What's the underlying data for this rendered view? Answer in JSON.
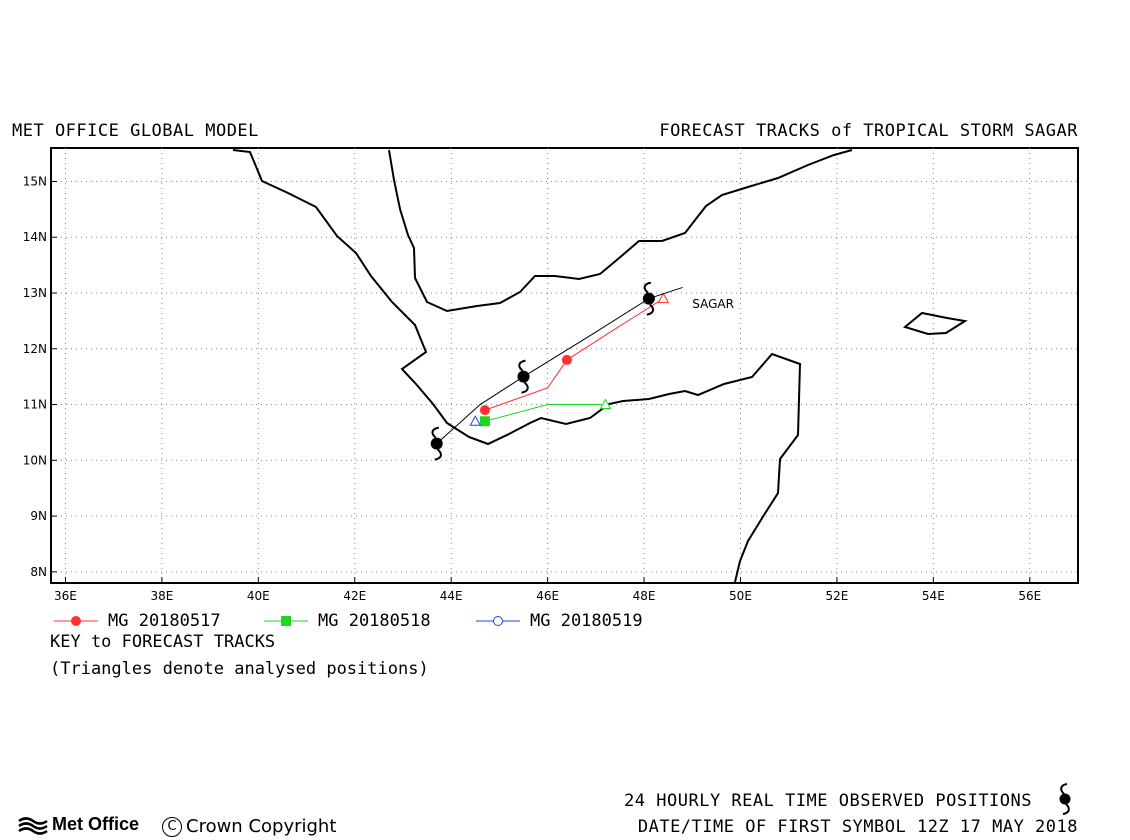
{
  "header": {
    "left_title": "MET OFFICE GLOBAL MODEL",
    "right_title": "FORECAST TRACKS of TROPICAL STORM SAGAR"
  },
  "map": {
    "lon_range": [
      35.7,
      57.0
    ],
    "lat_range": [
      7.8,
      15.6
    ],
    "x_ticks": [
      "36E",
      "38E",
      "40E",
      "42E",
      "44E",
      "46E",
      "48E",
      "50E",
      "52E",
      "54E",
      "56E"
    ],
    "y_ticks": [
      "8N",
      "9N",
      "10N",
      "11N",
      "12N",
      "13N",
      "14N",
      "15N"
    ],
    "grid": "dotted",
    "storm_label": "SAGAR",
    "storm_label_lon": 49.0,
    "storm_label_lat": 12.8
  },
  "observed_track": {
    "description_label": "24 HOURLY REAL TIME OBSERVED POSITIONS",
    "points": [
      {
        "lon": 43.7,
        "lat": 10.3
      },
      {
        "lon": 44.6,
        "lat": 11.0
      },
      {
        "lon": 45.5,
        "lat": 11.5
      },
      {
        "lon": 47.0,
        "lat": 12.3
      },
      {
        "lon": 48.1,
        "lat": 12.9
      },
      {
        "lon": 48.8,
        "lat": 13.1
      }
    ],
    "symbol_points": [
      {
        "lon": 43.7,
        "lat": 10.3
      },
      {
        "lon": 45.5,
        "lat": 11.5
      },
      {
        "lon": 48.1,
        "lat": 12.9
      }
    ]
  },
  "forecast_tracks": [
    {
      "name": "MG 20180517",
      "color": "#ff3030",
      "marker": "filled-circle",
      "points": [
        {
          "lon": 44.7,
          "lat": 10.9
        },
        {
          "lon": 46.0,
          "lat": 11.3
        },
        {
          "lon": 46.4,
          "lat": 11.8
        },
        {
          "lon": 47.3,
          "lat": 12.3
        },
        {
          "lon": 48.4,
          "lat": 12.9
        }
      ],
      "markers": [
        {
          "lon": 44.7,
          "lat": 10.9
        },
        {
          "lon": 46.4,
          "lat": 11.8
        }
      ],
      "triangle": {
        "lon": 48.4,
        "lat": 12.9
      }
    },
    {
      "name": "MG 20180518",
      "color": "#1ed81e",
      "marker": "filled-square",
      "points": [
        {
          "lon": 44.7,
          "lat": 10.7
        },
        {
          "lon": 46.0,
          "lat": 11.0
        },
        {
          "lon": 47.2,
          "lat": 11.0
        }
      ],
      "markers": [
        {
          "lon": 44.7,
          "lat": 10.7
        }
      ],
      "triangle": {
        "lon": 47.2,
        "lat": 11.0
      }
    },
    {
      "name": "MG 20180519",
      "color": "#2040ff",
      "marker": "open-circle",
      "points": [
        {
          "lon": 44.5,
          "lat": 10.7
        }
      ],
      "markers": [],
      "triangle": {
        "lon": 44.5,
        "lat": 10.7
      }
    }
  ],
  "key": {
    "title": "KEY to FORECAST TRACKS",
    "note": "(Triangles denote analysed positions)"
  },
  "footer": {
    "logo_text": "Met Office",
    "copyright": "Crown Copyright",
    "copyright_symbol": "C",
    "observed_label": "24 HOURLY REAL TIME OBSERVED POSITIONS",
    "first_symbol_label": "DATE/TIME OF FIRST SYMBOL 12Z 17 MAY 2018"
  }
}
